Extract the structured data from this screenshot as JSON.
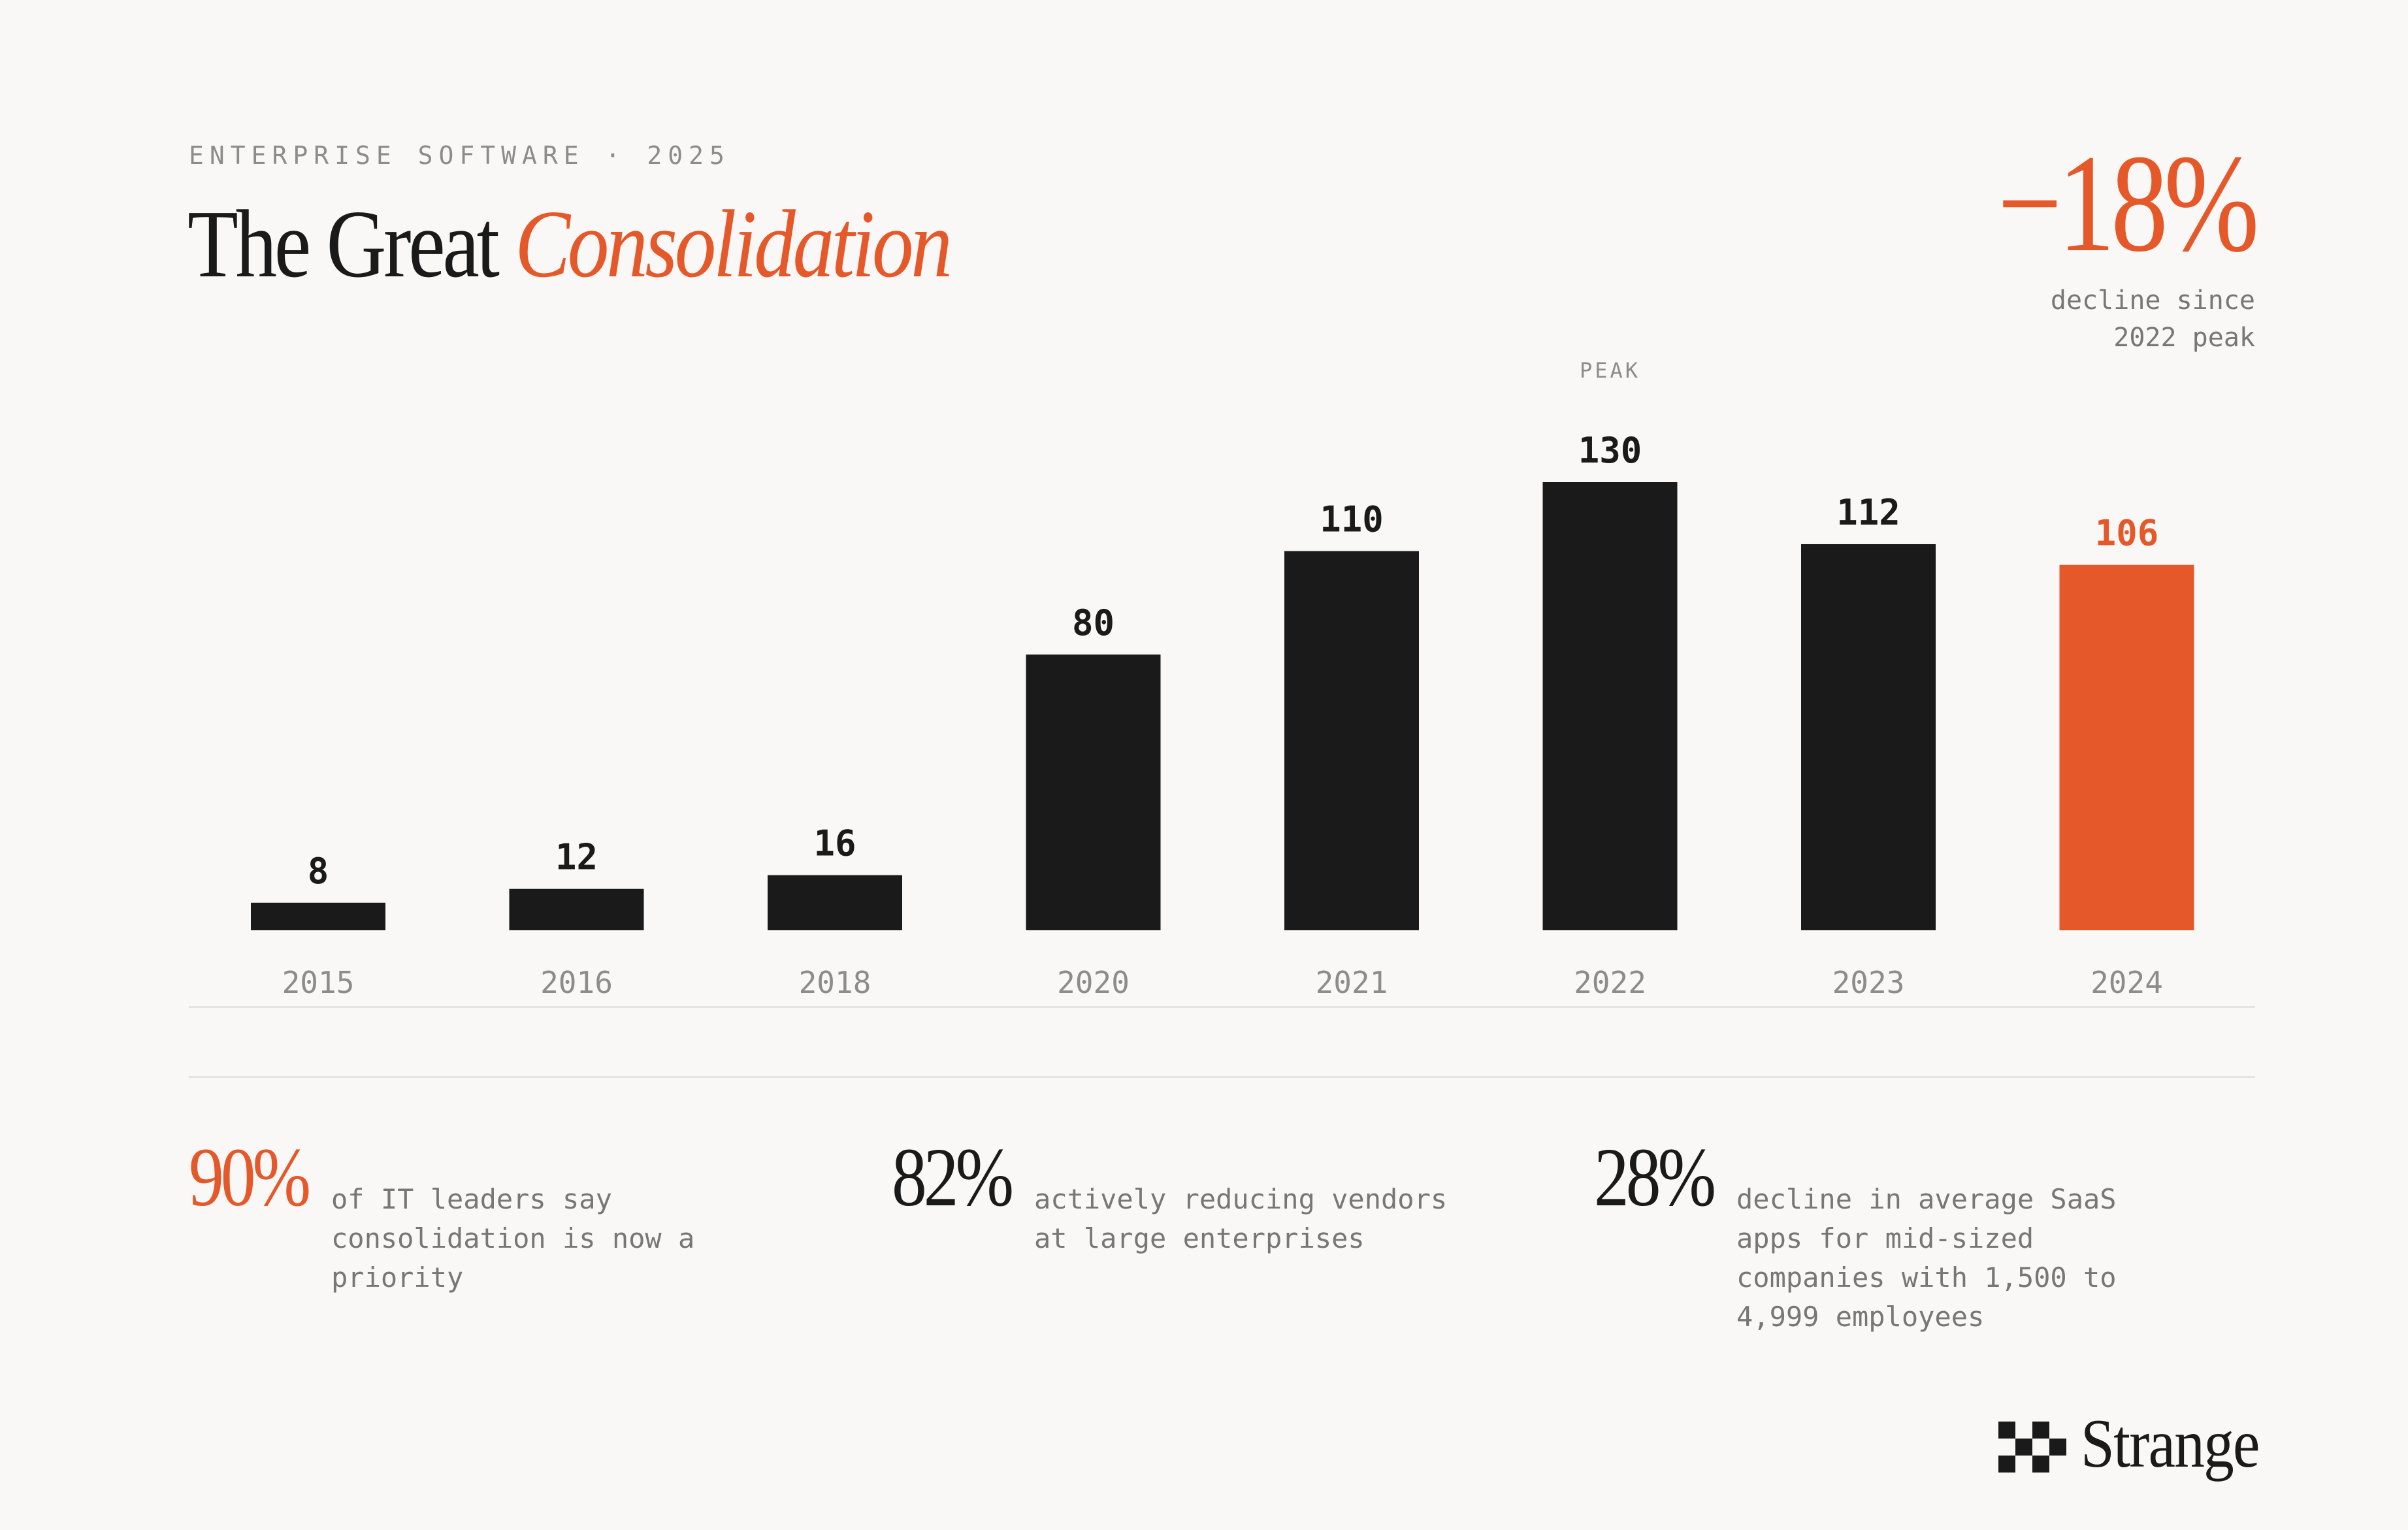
{
  "header": {
    "eyebrow": "ENTERPRISE SOFTWARE · 2025",
    "title_plain": "The Great",
    "title_accent": "Consolidation"
  },
  "headline": {
    "value": "−18%",
    "caption_line1": "decline since",
    "caption_line2": "2022 peak"
  },
  "colors": {
    "bar": "#1a1a1a",
    "highlight": "#e5582a",
    "muted": "#8c8c8c",
    "background": "#f9f8f6"
  },
  "chart_data": {
    "type": "bar",
    "categories": [
      "2015",
      "2016",
      "2018",
      "2020",
      "2021",
      "2022",
      "2023",
      "2024"
    ],
    "values": [
      8,
      12,
      16,
      80,
      110,
      130,
      112,
      106
    ],
    "highlight_index": 7,
    "annotation": {
      "category": "2022",
      "text": "PEAK"
    },
    "ylim": [
      0,
      130
    ],
    "grid": false,
    "legend": "none"
  },
  "stats": [
    {
      "value": "90%",
      "desc_lines": [
        "of IT leaders say",
        "consolidation is now a",
        "priority"
      ],
      "accent": true
    },
    {
      "value": "82%",
      "desc_lines": [
        "actively reducing vendors",
        "at large enterprises"
      ],
      "accent": false
    },
    {
      "value": "28%",
      "desc_lines": [
        "decline in average SaaS",
        "apps for mid-sized",
        "companies with 1,500 to",
        "4,999 employees"
      ],
      "accent": false
    }
  ],
  "brand": {
    "name": "Strange",
    "icon": "checker-logo-icon"
  }
}
